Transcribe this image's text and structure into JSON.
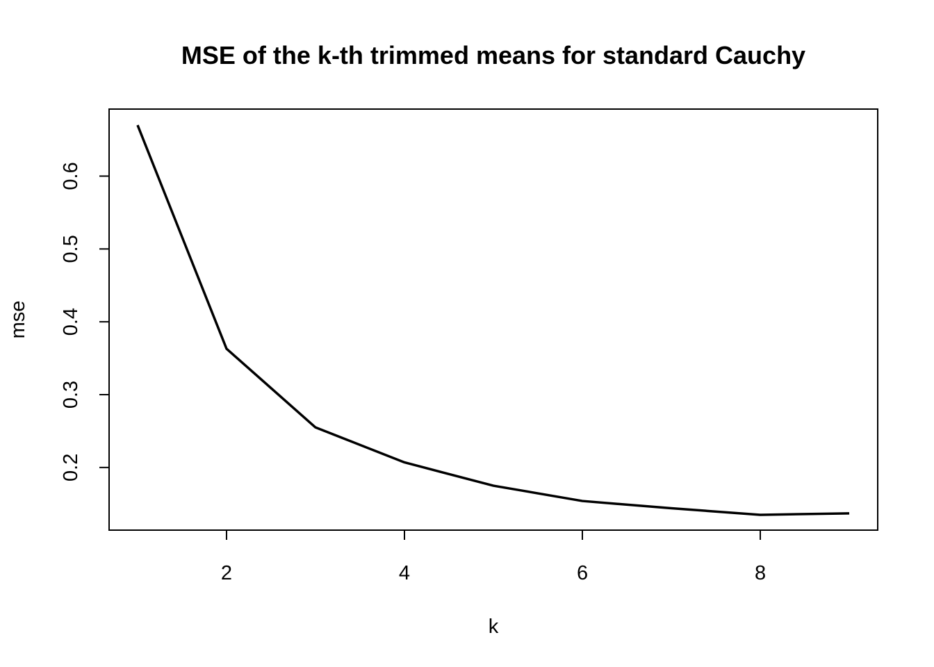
{
  "chart_data": {
    "type": "line",
    "title": "MSE of the k-th trimmed means for standard Cauchy",
    "xlabel": "k",
    "ylabel": "mse",
    "x": [
      1,
      2,
      3,
      4,
      5,
      6,
      7,
      8,
      9
    ],
    "series": [
      {
        "values": [
          0.67,
          0.363,
          0.255,
          0.207,
          0.175,
          0.154,
          0.144,
          0.135,
          0.137
        ]
      }
    ],
    "xlim": [
      0.68,
      9.32
    ],
    "ylim": [
      0.114,
      0.692
    ],
    "x_ticks": [
      2,
      4,
      6,
      8
    ],
    "x_tick_labels": [
      "2",
      "4",
      "6",
      "8"
    ],
    "y_ticks": [
      0.2,
      0.3,
      0.4,
      0.5,
      0.6
    ],
    "y_tick_labels": [
      "0.2",
      "0.3",
      "0.4",
      "0.5",
      "0.6"
    ],
    "grid": false,
    "line_color": "#000000",
    "background": "#ffffff"
  }
}
